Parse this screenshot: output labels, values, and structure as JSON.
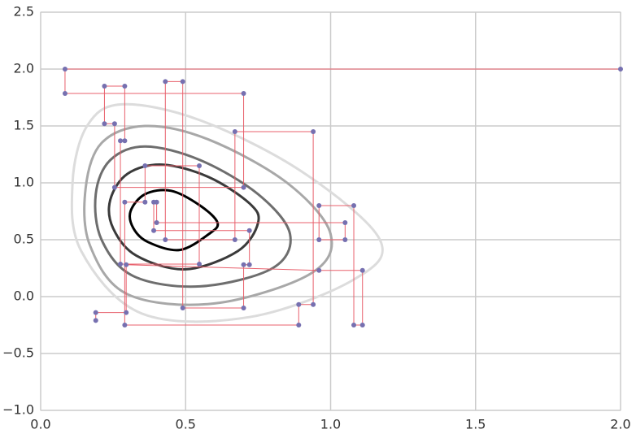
{
  "chart_data": {
    "type": "contour",
    "xlim": [
      0,
      2
    ],
    "ylim": [
      -1,
      2.5
    ],
    "xticks": [
      {
        "value": 0,
        "label": "0.0"
      },
      {
        "value": 0.5,
        "label": "0.5"
      },
      {
        "value": 1,
        "label": "1.0"
      },
      {
        "value": 1.5,
        "label": "1.5"
      },
      {
        "value": 2,
        "label": "2.0"
      }
    ],
    "yticks": [
      {
        "value": -1,
        "label": "−1.0"
      },
      {
        "value": -0.5,
        "label": "−0.5"
      },
      {
        "value": 0,
        "label": "0.0"
      },
      {
        "value": 0.5,
        "label": "0.5"
      },
      {
        "value": 1,
        "label": "1.0"
      },
      {
        "value": 1.5,
        "label": "1.5"
      },
      {
        "value": 2,
        "label": "2.0"
      },
      {
        "value": 2.5,
        "label": "2.5"
      }
    ],
    "grid": true,
    "contours": [
      {
        "color": "#dcdcdc",
        "x": [
          0.11,
          0.16,
          0.28,
          0.55,
          0.9,
          1.17,
          1.08,
          0.72,
          0.35,
          0.14
        ],
        "y": [
          1.0,
          1.5,
          1.69,
          1.55,
          1.1,
          0.5,
          0.15,
          -0.18,
          -0.15,
          0.4
        ]
      },
      {
        "color": "#a8a8a8",
        "x": [
          0.155,
          0.21,
          0.36,
          0.58,
          0.85,
          1.0,
          0.93,
          0.6,
          0.3,
          0.17
        ],
        "y": [
          0.95,
          1.35,
          1.5,
          1.38,
          1.0,
          0.55,
          0.2,
          -0.06,
          0.02,
          0.45
        ]
      },
      {
        "color": "#6e6e6e",
        "x": [
          0.19,
          0.24,
          0.36,
          0.55,
          0.75,
          0.86,
          0.8,
          0.55,
          0.32,
          0.21
        ],
        "y": [
          0.9,
          1.2,
          1.32,
          1.2,
          0.9,
          0.55,
          0.25,
          0.09,
          0.18,
          0.5
        ]
      },
      {
        "color": "#3a3a3a",
        "x": [
          0.24,
          0.3,
          0.42,
          0.58,
          0.72,
          0.75,
          0.68,
          0.5,
          0.33,
          0.25
        ],
        "y": [
          0.85,
          1.08,
          1.16,
          1.05,
          0.82,
          0.65,
          0.4,
          0.24,
          0.36,
          0.6
        ]
      },
      {
        "color": "#000000",
        "x": [
          0.31,
          0.36,
          0.45,
          0.55,
          0.61,
          0.58,
          0.48,
          0.37,
          0.32
        ],
        "y": [
          0.75,
          0.9,
          0.93,
          0.8,
          0.65,
          0.55,
          0.41,
          0.48,
          0.6
        ]
      }
    ],
    "series": [
      {
        "color": "#e8606c",
        "marker_color": "#7670b0",
        "x": [
          2.0,
          0.084,
          0.084,
          0.7,
          0.7,
          0.255,
          0.255,
          0.22,
          0.22,
          0.29,
          0.29,
          0.275,
          0.275,
          0.547,
          0.547,
          0.36,
          0.36,
          0.29,
          0.29,
          0.89,
          0.89,
          0.94,
          0.94,
          0.67,
          0.67,
          0.43,
          0.43,
          0.49,
          0.49,
          0.7,
          0.7,
          0.72,
          0.72,
          0.39,
          0.39,
          0.4,
          0.4,
          1.05,
          1.05,
          0.96,
          0.96,
          1.08,
          1.08,
          1.11,
          1.11,
          0.96,
          0.295,
          0.295,
          0.19,
          0.19
        ],
        "y": [
          2.0,
          2.0,
          1.786,
          1.786,
          0.96,
          0.96,
          1.52,
          1.52,
          1.85,
          1.85,
          1.37,
          1.37,
          0.286,
          0.286,
          1.15,
          1.15,
          0.83,
          0.83,
          -0.25,
          -0.25,
          -0.07,
          -0.07,
          1.45,
          1.45,
          0.5,
          0.5,
          1.89,
          1.89,
          -0.1,
          -0.1,
          0.28,
          0.28,
          0.58,
          0.58,
          0.83,
          0.83,
          0.65,
          0.65,
          0.5,
          0.5,
          0.8,
          0.8,
          -0.25,
          -0.25,
          0.23,
          0.23,
          0.28,
          -0.14,
          -0.14,
          -0.21
        ]
      }
    ]
  }
}
